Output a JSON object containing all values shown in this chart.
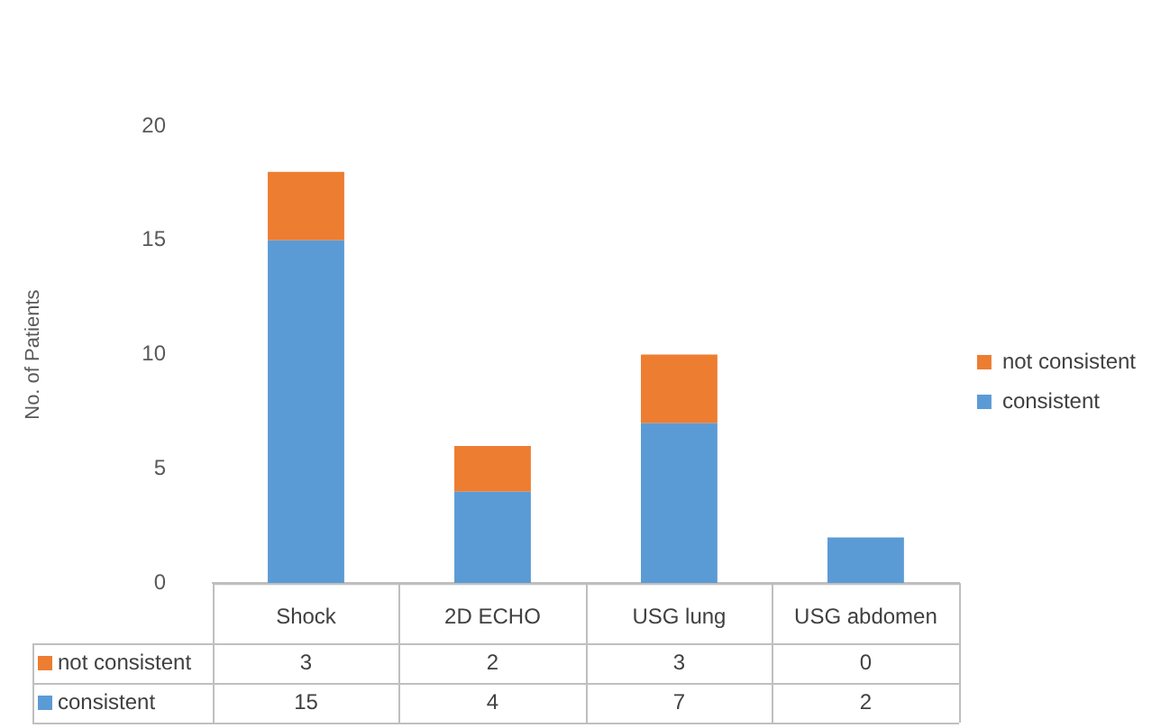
{
  "chart_data": {
    "type": "bar",
    "ylabel": "No. of Patients",
    "categories": [
      "Shock",
      "2D ECHO",
      "USG lung",
      "USG abdomen"
    ],
    "series": [
      {
        "name": "consistent",
        "color": "#5b9bd5",
        "values": [
          15,
          4,
          7,
          2
        ]
      },
      {
        "name": "not consistent",
        "color": "#ed7d31",
        "values": [
          3,
          2,
          3,
          0
        ]
      }
    ],
    "stacked": true,
    "ylim": [
      0,
      20
    ],
    "yticks": [
      0,
      5,
      10,
      15,
      20
    ],
    "grid": false,
    "legend": "right",
    "data_labels": true
  }
}
